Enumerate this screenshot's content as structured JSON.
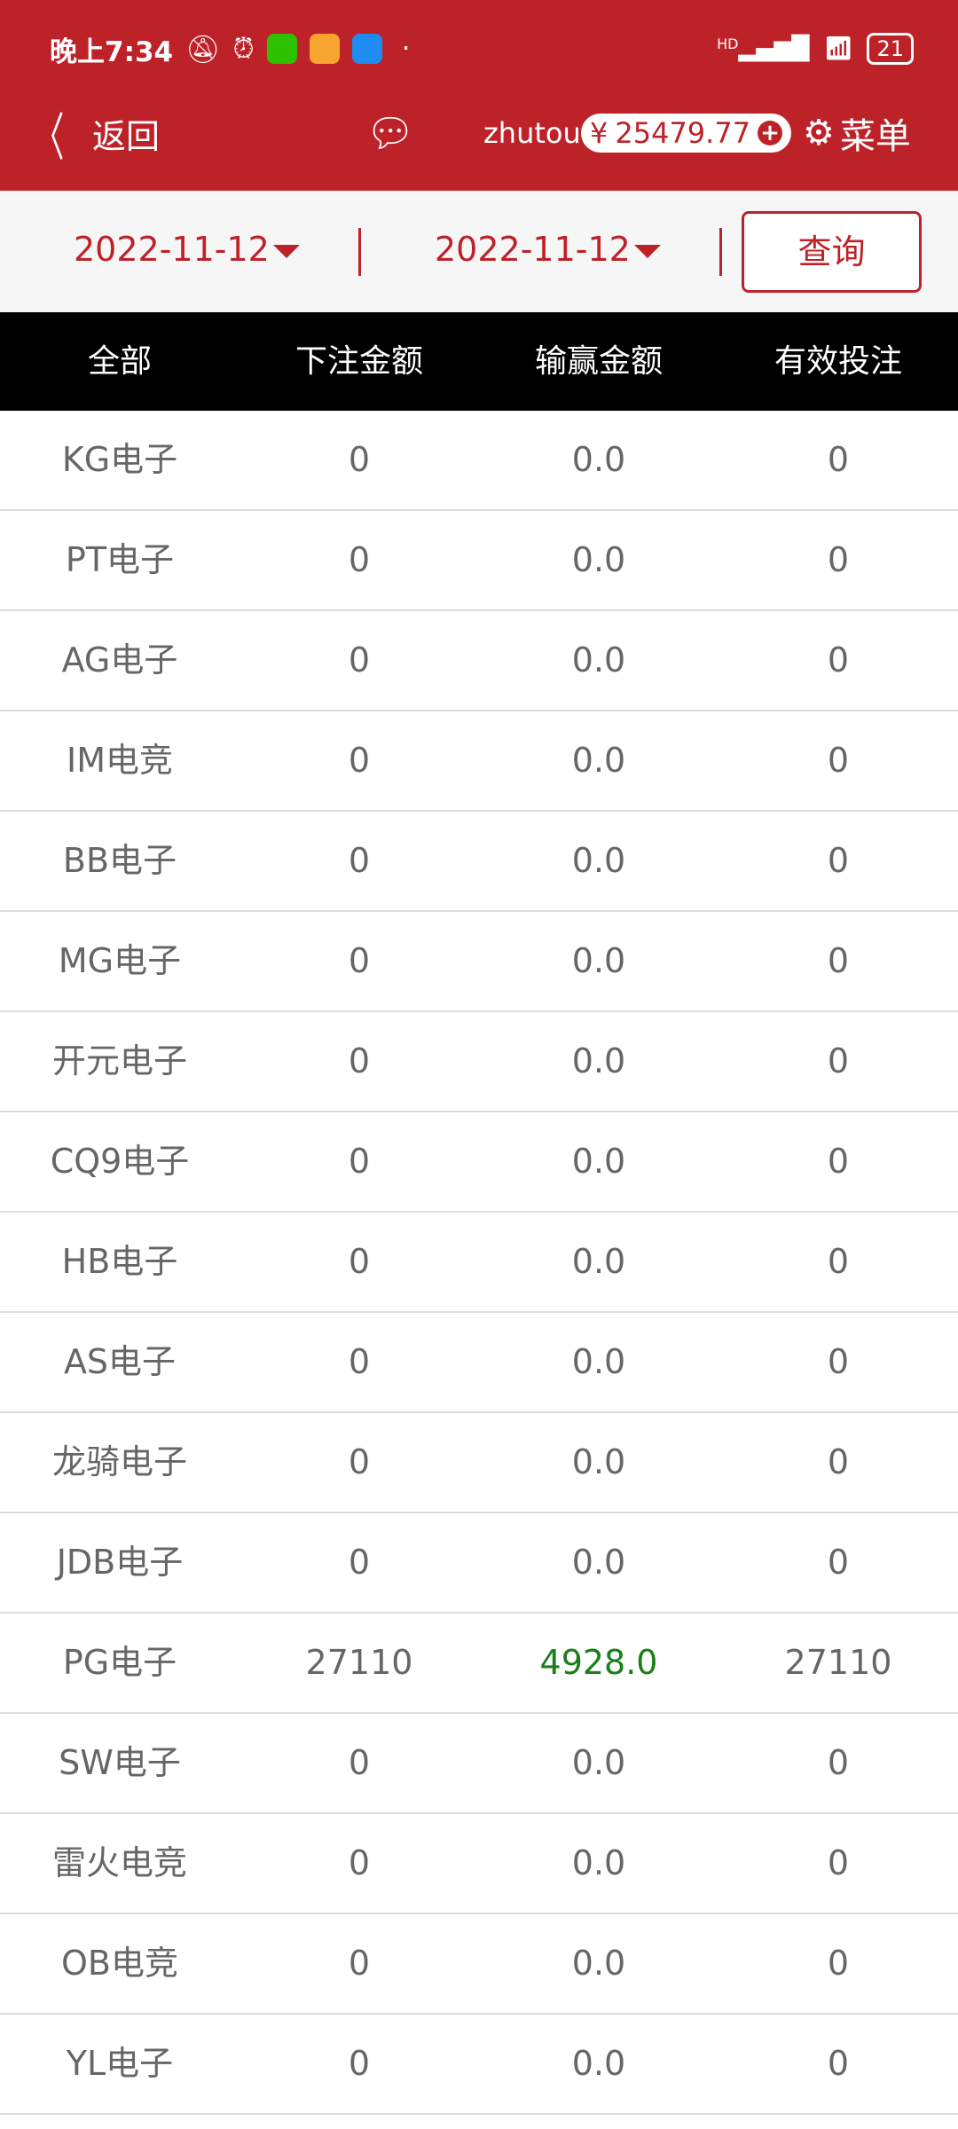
{
  "status_bar": {
    "time": "晚上7:34",
    "network": "HD",
    "battery": "21"
  },
  "header": {
    "back_label": "返回",
    "username": "zhutou",
    "currency": "¥",
    "balance": "25479.77",
    "menu_label": "菜单"
  },
  "filters": {
    "start_date": "2022-11-12",
    "end_date": "2022-11-12",
    "query_label": "查询"
  },
  "table": {
    "columns": [
      "全部",
      "下注金额",
      "输赢金额",
      "有效投注"
    ],
    "rows": [
      [
        "KG电子",
        "0",
        "0.0",
        "0"
      ],
      [
        "PT电子",
        "0",
        "0.0",
        "0"
      ],
      [
        "AG电子",
        "0",
        "0.0",
        "0"
      ],
      [
        "IM电竞",
        "0",
        "0.0",
        "0"
      ],
      [
        "BB电子",
        "0",
        "0.0",
        "0"
      ],
      [
        "MG电子",
        "0",
        "0.0",
        "0"
      ],
      [
        "开元电子",
        "0",
        "0.0",
        "0"
      ],
      [
        "CQ9电子",
        "0",
        "0.0",
        "0"
      ],
      [
        "HB电子",
        "0",
        "0.0",
        "0"
      ],
      [
        "AS电子",
        "0",
        "0.0",
        "0"
      ],
      [
        "龙骑电子",
        "0",
        "0.0",
        "0"
      ],
      [
        "JDB电子",
        "0",
        "0.0",
        "0"
      ],
      [
        "PG电子",
        "27110",
        "4928.0",
        "27110"
      ],
      [
        "SW电子",
        "0",
        "0.0",
        "0"
      ],
      [
        "雷火电竞",
        "0",
        "0.0",
        "0"
      ],
      [
        "OB电竞",
        "0",
        "0.0",
        "0"
      ],
      [
        "YL电子",
        "0",
        "0.0",
        "0"
      ]
    ]
  },
  "colors": {
    "brand": "#BE2229",
    "positive": "#1a7f1a"
  }
}
